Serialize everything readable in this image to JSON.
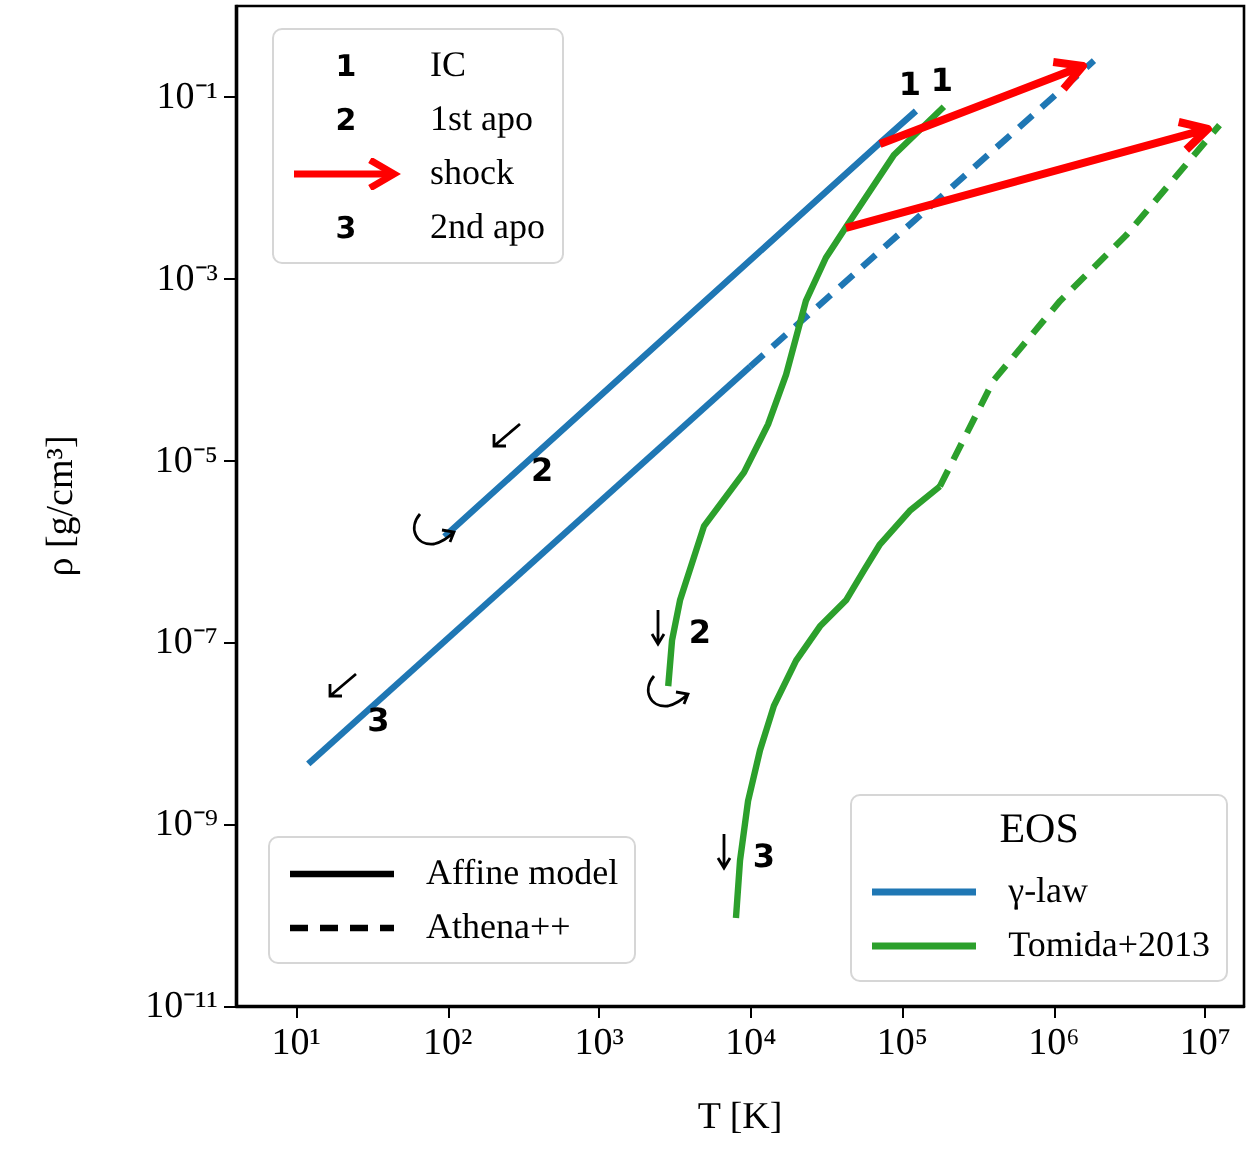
{
  "chart_data": {
    "type": "line",
    "xlabel": "T [K]",
    "ylabel": "ρ [g/cm³]",
    "legend_title": "EOS",
    "legend": "bottom right",
    "log": "xy",
    "marker": "none",
    "line_style": "solid",
    "xlim": [
      4,
      18000000
    ],
    "ylim": [
      1e-11,
      1
    ],
    "xticks": [
      {
        "value": 10,
        "label": "10¹"
      },
      {
        "value": 100,
        "label": "10²"
      },
      {
        "value": 1000,
        "label": "10³"
      },
      {
        "value": 10000,
        "label": "10⁴"
      },
      {
        "value": 100000,
        "label": "10⁵"
      },
      {
        "value": 1000000,
        "label": "10⁶"
      },
      {
        "value": 10000000,
        "label": "10⁷"
      }
    ],
    "yticks": [
      {
        "value": 1e-11,
        "label": "10⁻¹¹"
      },
      {
        "value": 1e-09,
        "label": "10⁻⁹"
      },
      {
        "value": 1e-07,
        "label": "10⁻⁷"
      },
      {
        "value": 1e-05,
        "label": "10⁻⁵"
      },
      {
        "value": 0.001,
        "label": "10⁻³"
      },
      {
        "value": 0.1,
        "label": "10⁻¹"
      }
    ],
    "series": [
      {
        "name": "γ-law",
        "color": "#1f77b4",
        "x": [
          95,
          71000,
          123000
        ],
        "values": [
          1.46e-06,
          0.031,
          0.07
        ]
      },
      {
        "color": "#1f77b4",
        "x": [
          12,
          9900
        ],
        "values": [
          4.6e-09,
          0.000108
        ]
      },
      {
        "color": "#1f77b4",
        "line_style": "dashed",
        "x": [
          9900,
          1840000
        ],
        "values": [
          0.000108,
          0.25
        ]
      },
      {
        "name": "Tomida+2013",
        "color": "#2ca02c",
        "x": [
          2850,
          3020,
          3410,
          4910,
          9020,
          13000,
          17100,
          23100,
          31300,
          42500,
          88000,
          188000
        ],
        "values": [
          3.3e-08,
          1.05e-07,
          2.9e-07,
          1.9e-06,
          7.4e-06,
          2.5e-05,
          8.8e-05,
          0.00057,
          0.0017,
          0.0037,
          0.023,
          0.078
        ]
      },
      {
        "color": "#2ca02c",
        "x": [
          7980,
          8490,
          9590,
          11500,
          14200,
          19900,
          28600,
          42500,
          55800,
          71200,
          112000,
          177000
        ],
        "values": [
          9.3e-11,
          4e-10,
          1.8e-09,
          6.5e-09,
          2e-08,
          6.3e-08,
          1.5e-07,
          2.9e-07,
          6.2e-07,
          1.2e-06,
          2.8e-06,
          5.2e-06
        ]
      },
      {
        "color": "#2ca02c",
        "line_style": "dashed",
        "x": [
          177000,
          400000,
          1100000,
          3000000,
          12400000
        ],
        "values": [
          5.2e-06,
          7.6e-05,
          0.00057,
          0.003,
          0.049
        ]
      }
    ],
    "annotations": [
      "1 IC",
      "2 1st apo",
      "shock",
      "3 2nd apo",
      "Affine model",
      "Athena++",
      {
        "text": "1",
        "x": 123000,
        "y": 0.07
      },
      {
        "text": "1",
        "x": 188000,
        "y": 0.078
      },
      {
        "text": "2",
        "x": 350,
        "y": 1e-05
      },
      {
        "text": "3",
        "x": 29,
        "y": 1.8e-08
      },
      {
        "text": "2",
        "x": 3400,
        "y": 1.3e-07
      },
      {
        "text": "3",
        "x": 9000,
        "y": 4.5e-10
      }
    ]
  }
}
